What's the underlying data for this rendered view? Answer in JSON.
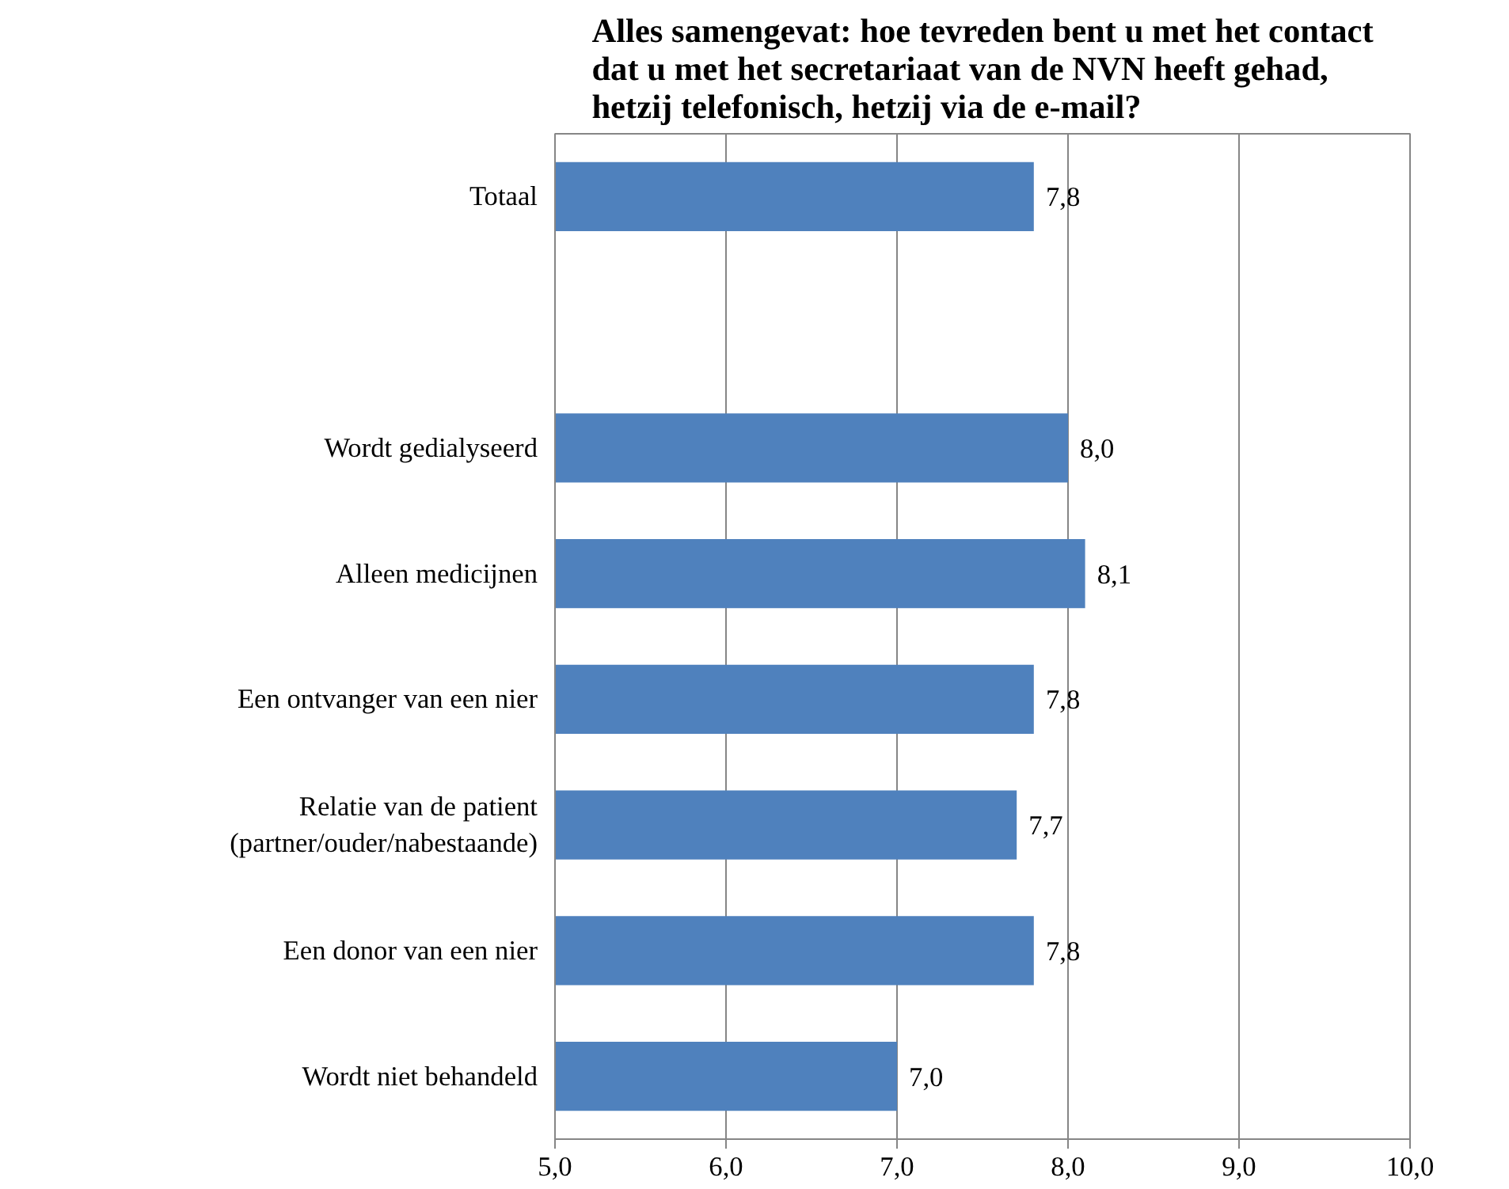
{
  "chart_data": {
    "type": "bar",
    "orientation": "horizontal",
    "title": "Alles samengevat: hoe tevreden bent u met het contact dat u met het secretariaat van de NVN heeft gehad, hetzij telefonisch, hetzij via de e-mail?",
    "categories": [
      "Totaal",
      null,
      "Wordt gedialyseerd",
      "Alleen medicijnen",
      "Een ontvanger van een nier",
      "Relatie van de patient\n(partner/ouder/nabestaande)",
      "Een donor van een nier",
      "Wordt niet behandeld"
    ],
    "values": [
      7.8,
      null,
      8.0,
      8.1,
      7.8,
      7.7,
      7.8,
      7.0
    ],
    "value_labels": [
      "7,8",
      null,
      "8,0",
      "8,1",
      "7,8",
      "7,7",
      "7,8",
      "7,0"
    ],
    "color": "#4f81bd",
    "xlim": [
      5,
      10
    ],
    "xticks": [
      {
        "value": 5,
        "label": "5,0"
      },
      {
        "value": 6,
        "label": "6,0"
      },
      {
        "value": 7,
        "label": "7,0"
      },
      {
        "value": 8,
        "label": "8,0"
      },
      {
        "value": 9,
        "label": "9,0"
      },
      {
        "value": 10,
        "label": "10,0"
      }
    ],
    "grid": "x"
  }
}
